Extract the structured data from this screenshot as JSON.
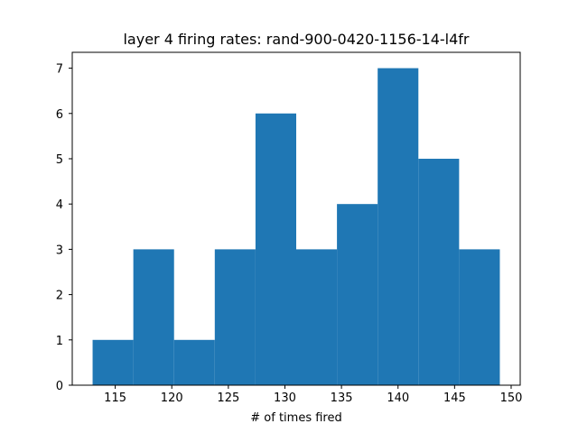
{
  "chart_data": {
    "type": "bar",
    "title": "layer 4 firing rates: rand-900-0420-1156-14-l4fr",
    "xlabel": "# of times fired",
    "ylabel": "",
    "bins": [
      {
        "start": 113.0,
        "end": 116.6,
        "count": 1
      },
      {
        "start": 116.6,
        "end": 120.2,
        "count": 3
      },
      {
        "start": 120.2,
        "end": 123.8,
        "count": 1
      },
      {
        "start": 123.8,
        "end": 127.4,
        "count": 3
      },
      {
        "start": 127.4,
        "end": 131.0,
        "count": 6
      },
      {
        "start": 131.0,
        "end": 134.6,
        "count": 3
      },
      {
        "start": 134.6,
        "end": 138.2,
        "count": 4
      },
      {
        "start": 138.2,
        "end": 141.8,
        "count": 7
      },
      {
        "start": 141.8,
        "end": 145.4,
        "count": 5
      },
      {
        "start": 145.4,
        "end": 149.0,
        "count": 3
      }
    ],
    "xlim": [
      111.2,
      150.8
    ],
    "ylim": [
      0,
      7.35
    ],
    "xticks": [
      115,
      120,
      125,
      130,
      135,
      140,
      145,
      150
    ],
    "yticks": [
      0,
      1,
      2,
      3,
      4,
      5,
      6,
      7
    ],
    "bar_color": "#1f77b4",
    "grid": false,
    "legend": "none"
  }
}
